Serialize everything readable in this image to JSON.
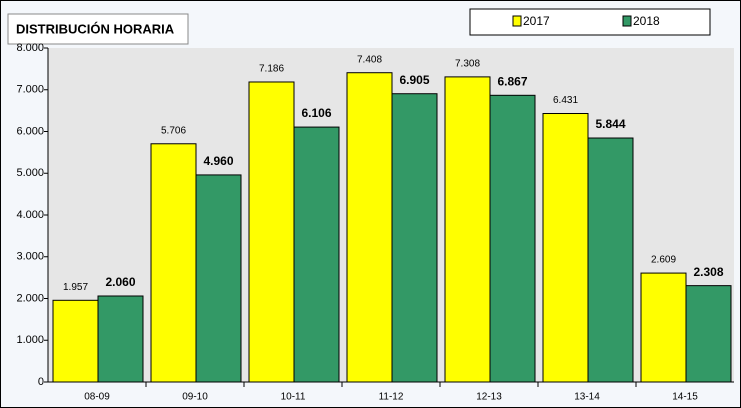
{
  "chart_data": {
    "type": "bar",
    "title": "DISTRIBUCIÓN HORARIA",
    "categories": [
      "08-09",
      "09-10",
      "10-11",
      "11-12",
      "12-13",
      "13-14",
      "14-15"
    ],
    "series": [
      {
        "name": "2017",
        "color": "#ffff00",
        "values": [
          1957,
          5706,
          7186,
          7408,
          7308,
          6431,
          2609
        ],
        "value_labels": [
          "1.957",
          "5.706",
          "7.186",
          "7.408",
          "7.308",
          "6.431",
          "2.609"
        ]
      },
      {
        "name": "2018",
        "color": "#339966",
        "values": [
          2060,
          4960,
          6106,
          6905,
          6867,
          5844,
          2308
        ],
        "value_labels": [
          "2.060",
          "4.960",
          "6.106",
          "6.905",
          "6.867",
          "5.844",
          "2.308"
        ]
      }
    ],
    "ylim": [
      0,
      8000
    ],
    "yticks": [
      0,
      {
        "value": 1000,
        "label": "1.000"
      },
      {
        "value": 2000,
        "label": "2.000"
      },
      {
        "value": 3000,
        "label": "3.000"
      },
      {
        "value": 4000,
        "label": "4.000"
      },
      {
        "value": 5000,
        "label": "5.000"
      },
      {
        "value": 6000,
        "label": "6.000"
      },
      {
        "value": 7000,
        "label": "7.000"
      },
      {
        "value": 8000,
        "label": "8.000"
      }
    ],
    "grid": false,
    "legend": "top-right"
  }
}
